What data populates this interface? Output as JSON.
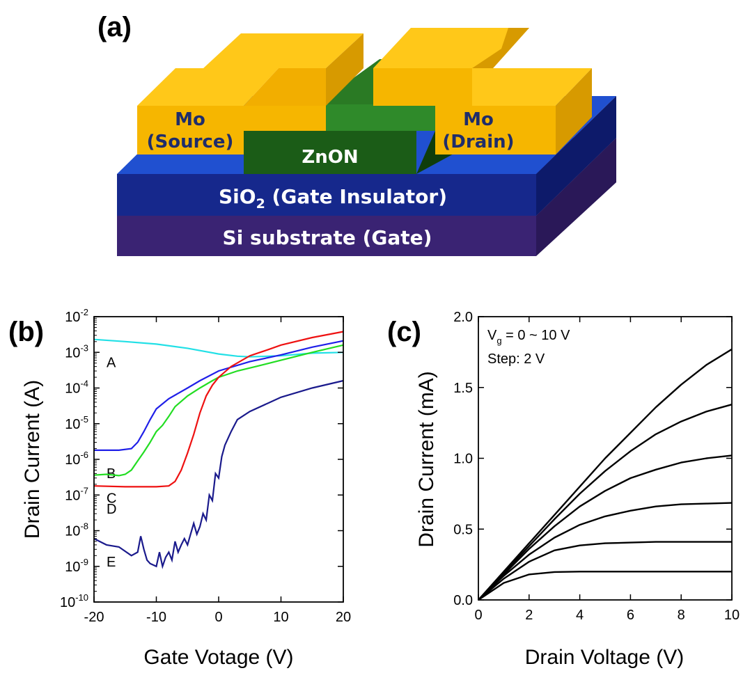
{
  "panel_a": {
    "label": "(a)",
    "layers": {
      "source_line1": "Mo",
      "source_line2": "(Source)",
      "drain_line1": "Mo",
      "drain_line2": "(Drain)",
      "channel": "ZnON",
      "insulator_main": "SiO",
      "insulator_sub": "2",
      "insulator_rest": " (Gate Insulator)",
      "substrate": "Si substrate (Gate)"
    },
    "colors": {
      "mo_front": "#f6b600",
      "mo_top": "#ffc819",
      "mo_side": "#d79a00",
      "znon_front": "#1b5c17",
      "sio2_front": "#16288c",
      "si_front": "#3a2373"
    }
  },
  "chart_data": [
    {
      "panel": "(b)",
      "type": "line",
      "xlabel": "Gate Votage (V)",
      "ylabel": "Drain Current (A)",
      "xlim": [
        -20,
        20
      ],
      "ylim": [
        1e-10,
        0.01
      ],
      "yscale": "log",
      "xticks": [
        -20,
        -10,
        0,
        10,
        20
      ],
      "yticks": [
        {
          "mant": "10",
          "exp": "-10"
        },
        {
          "mant": "10",
          "exp": "-9"
        },
        {
          "mant": "10",
          "exp": "-8"
        },
        {
          "mant": "10",
          "exp": "-7"
        },
        {
          "mant": "10",
          "exp": "-6"
        },
        {
          "mant": "10",
          "exp": "-5"
        },
        {
          "mant": "10",
          "exp": "-4"
        },
        {
          "mant": "10",
          "exp": "-3"
        },
        {
          "mant": "10",
          "exp": "-2"
        }
      ],
      "series": [
        {
          "name": "A",
          "color": "#22e0e6",
          "x": [
            -20,
            -15,
            -10,
            -5,
            0,
            3,
            5,
            10,
            15,
            20
          ],
          "y": [
            0.0023,
            0.002,
            0.0017,
            0.0013,
            0.0009,
            0.00078,
            0.00075,
            0.0008,
            0.00095,
            0.001
          ]
        },
        {
          "name": "B",
          "color": "#1f1fe8",
          "x": [
            -20,
            -16,
            -14,
            -13,
            -12,
            -11,
            -10,
            -8,
            -5,
            -3,
            0,
            5,
            10,
            15,
            20
          ],
          "y": [
            1.8e-06,
            1.8e-06,
            2e-06,
            3e-06,
            6e-06,
            1.3e-05,
            2.6e-05,
            5e-05,
            0.0001,
            0.00016,
            0.0003,
            0.00055,
            0.00085,
            0.0014,
            0.0021
          ]
        },
        {
          "name": "C",
          "color": "#22dd22",
          "x": [
            -20,
            -18,
            -16,
            -15,
            -14,
            -13,
            -12,
            -11,
            -10,
            -9,
            -8,
            -7,
            -5,
            -3,
            -1,
            0,
            3,
            6,
            10,
            15,
            20
          ],
          "y": [
            3.6e-07,
            3.8e-07,
            3.5e-07,
            3.8e-07,
            5e-07,
            9e-07,
            1.6e-06,
            3e-06,
            6e-06,
            9e-06,
            1.6e-05,
            3e-05,
            6e-05,
            0.0001,
            0.00016,
            0.0002,
            0.0003,
            0.0004,
            0.0006,
            0.001,
            0.0016
          ]
        },
        {
          "name": "D",
          "color": "#ee1111",
          "x": [
            -20,
            -15,
            -10,
            -8,
            -7,
            -6,
            -5,
            -4,
            -3,
            -2,
            -1,
            0,
            2,
            5,
            8,
            10,
            15,
            20
          ],
          "y": [
            1.8e-07,
            1.7e-07,
            1.7e-07,
            1.8e-07,
            2.4e-07,
            5e-07,
            1.5e-06,
            5e-06,
            2e-05,
            6e-05,
            0.00012,
            0.0002,
            0.0004,
            0.0008,
            0.0012,
            0.0016,
            0.0026,
            0.0038
          ]
        },
        {
          "name": "E",
          "color": "#1a1a8c",
          "x": [
            -20,
            -18,
            -16,
            -14,
            -13,
            -12.5,
            -12,
            -11.5,
            -11,
            -10,
            -9.5,
            -9,
            -8.5,
            -8,
            -7.5,
            -7,
            -6.5,
            -6,
            -5.5,
            -5,
            -4.5,
            -4,
            -3.5,
            -3,
            -2.5,
            -2,
            -1.5,
            -1,
            -0.5,
            0,
            0.5,
            1,
            2,
            3,
            5,
            8,
            10,
            15,
            20
          ],
          "y": [
            6e-09,
            4e-09,
            3.5e-09,
            2e-09,
            2.5e-09,
            7e-09,
            3e-09,
            1.5e-09,
            1.2e-09,
            1e-09,
            2.5e-09,
            1e-09,
            1.8e-09,
            2.5e-09,
            1.5e-09,
            5e-09,
            2.5e-09,
            4e-09,
            6e-09,
            4e-09,
            8e-09,
            1.6e-08,
            8e-09,
            1.3e-08,
            3e-08,
            2e-08,
            1e-07,
            7e-08,
            4e-07,
            3e-07,
            1.2e-06,
            2.5e-06,
            6e-06,
            1.3e-05,
            2.2e-05,
            3.8e-05,
            5.5e-05,
            0.0001,
            0.00016
          ]
        }
      ]
    },
    {
      "panel": "(c)",
      "type": "line",
      "xlabel": "Drain Voltage (V)",
      "ylabel": "Drain Current (mA)",
      "xlim": [
        0,
        10
      ],
      "ylim": [
        0,
        2.0
      ],
      "xticks": [
        0,
        2,
        4,
        6,
        8,
        10
      ],
      "yticks": [
        0.0,
        0.5,
        1.0,
        1.5,
        2.0
      ],
      "ytick_labels": [
        "0.0",
        "0.5",
        "1.0",
        "1.5",
        "2.0"
      ],
      "annotation_vg_main": "V",
      "annotation_vg_sub": "g",
      "annotation_vg_rest": " = 0 ~ 10 V",
      "annotation_step": "Step: 2 V",
      "series": [
        {
          "x": [
            0,
            1,
            2,
            3,
            4,
            5,
            6,
            7,
            8,
            9,
            10
          ],
          "y": [
            0,
            0.12,
            0.18,
            0.197,
            0.2,
            0.2,
            0.2,
            0.2,
            0.2,
            0.2,
            0.2
          ]
        },
        {
          "x": [
            0,
            1,
            2,
            3,
            4,
            5,
            6,
            7,
            8,
            9,
            10
          ],
          "y": [
            0,
            0.15,
            0.27,
            0.35,
            0.385,
            0.4,
            0.405,
            0.41,
            0.41,
            0.41,
            0.41
          ]
        },
        {
          "x": [
            0,
            1,
            2,
            3,
            4,
            5,
            6,
            7,
            8,
            9,
            10
          ],
          "y": [
            0,
            0.17,
            0.32,
            0.44,
            0.53,
            0.59,
            0.63,
            0.66,
            0.675,
            0.68,
            0.685
          ]
        },
        {
          "x": [
            0,
            1,
            2,
            3,
            4,
            5,
            6,
            7,
            8,
            9,
            10
          ],
          "y": [
            0,
            0.18,
            0.36,
            0.52,
            0.66,
            0.77,
            0.86,
            0.92,
            0.97,
            1.0,
            1.02
          ]
        },
        {
          "x": [
            0,
            1,
            2,
            3,
            4,
            5,
            6,
            7,
            8,
            9,
            10
          ],
          "y": [
            0,
            0.19,
            0.38,
            0.57,
            0.75,
            0.91,
            1.05,
            1.17,
            1.26,
            1.33,
            1.38
          ]
        },
        {
          "x": [
            0,
            1,
            2,
            3,
            4,
            5,
            6,
            7,
            8,
            9,
            10
          ],
          "y": [
            0,
            0.2,
            0.4,
            0.6,
            0.8,
            1.0,
            1.18,
            1.36,
            1.52,
            1.66,
            1.77
          ]
        }
      ]
    }
  ]
}
